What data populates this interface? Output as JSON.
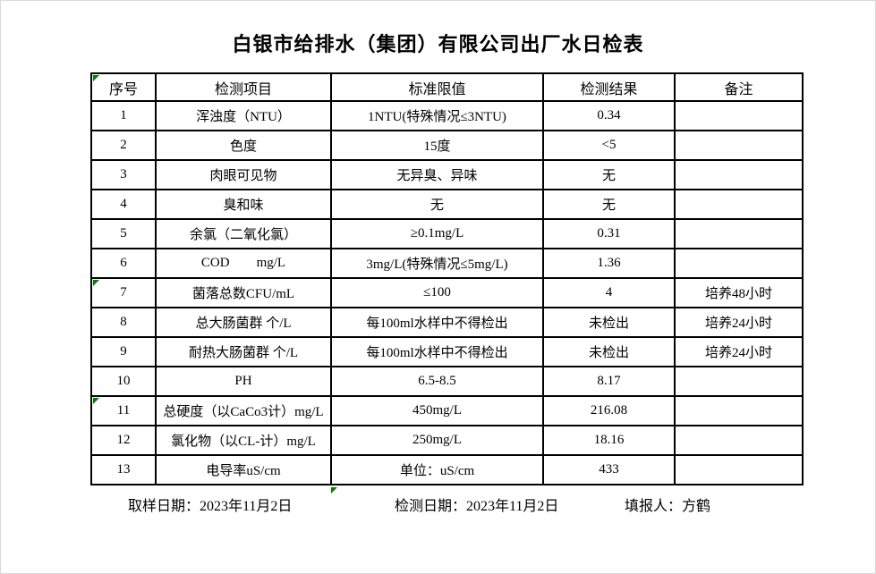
{
  "title": "白银市给排水（集团）有限公司出厂水日检表",
  "table": {
    "headers": [
      "序号",
      "检测项目",
      "标准限值",
      "检测结果",
      "备注"
    ],
    "rows": [
      {
        "no": "1",
        "item": "浑浊度（NTU）",
        "standard": "1NTU(特殊情况≤3NTU)",
        "result": "0.34",
        "note": ""
      },
      {
        "no": "2",
        "item": "色度",
        "standard": "15度",
        "result": "<5",
        "note": ""
      },
      {
        "no": "3",
        "item": "肉眼可见物",
        "standard": "无异臭、异味",
        "result": "无",
        "note": ""
      },
      {
        "no": "4",
        "item": "臭和味",
        "standard": "无",
        "result": "无",
        "note": ""
      },
      {
        "no": "5",
        "item": "余氯（二氧化氯）",
        "standard": "≥0.1mg/L",
        "result": "0.31",
        "note": ""
      },
      {
        "no": "6",
        "item": "COD        mg/L",
        "standard": "3mg/L(特殊情况≤5mg/L)",
        "result": "1.36",
        "note": ""
      },
      {
        "no": "7",
        "item": "菌落总数CFU/mL",
        "standard": "≤100",
        "result": "4",
        "note": "培养48小时"
      },
      {
        "no": "8",
        "item": "总大肠菌群 个/L",
        "standard": "每100ml水样中不得检出",
        "result": "未检出",
        "note": "培养24小时"
      },
      {
        "no": "9",
        "item": "耐热大肠菌群 个/L",
        "standard": "每100ml水样中不得检出",
        "result": "未检出",
        "note": "培养24小时"
      },
      {
        "no": "10",
        "item": "PH",
        "standard": "6.5-8.5",
        "result": "8.17",
        "note": ""
      },
      {
        "no": "11",
        "item": "总硬度（以CaCo3计）mg/L",
        "standard": "450mg/L",
        "result": "216.08",
        "note": ""
      },
      {
        "no": "12",
        "item": "氯化物（以CL-计）mg/L",
        "standard": "250mg/L",
        "result": "18.16",
        "note": ""
      },
      {
        "no": "13",
        "item": "电导率uS/cm",
        "standard": "单位：uS/cm",
        "result": "433",
        "note": ""
      }
    ]
  },
  "footer": {
    "sampling_date": "取样日期：2023年11月2日",
    "test_date": "检测日期：2023年11月2日",
    "reporter": "填报人：方鹤"
  },
  "colors": {
    "indicator_green": "#008000",
    "table_border": "#000000",
    "background": "#ffffff"
  },
  "icons": {
    "cell_error_indicator": "excel-green-corner-triangle"
  }
}
